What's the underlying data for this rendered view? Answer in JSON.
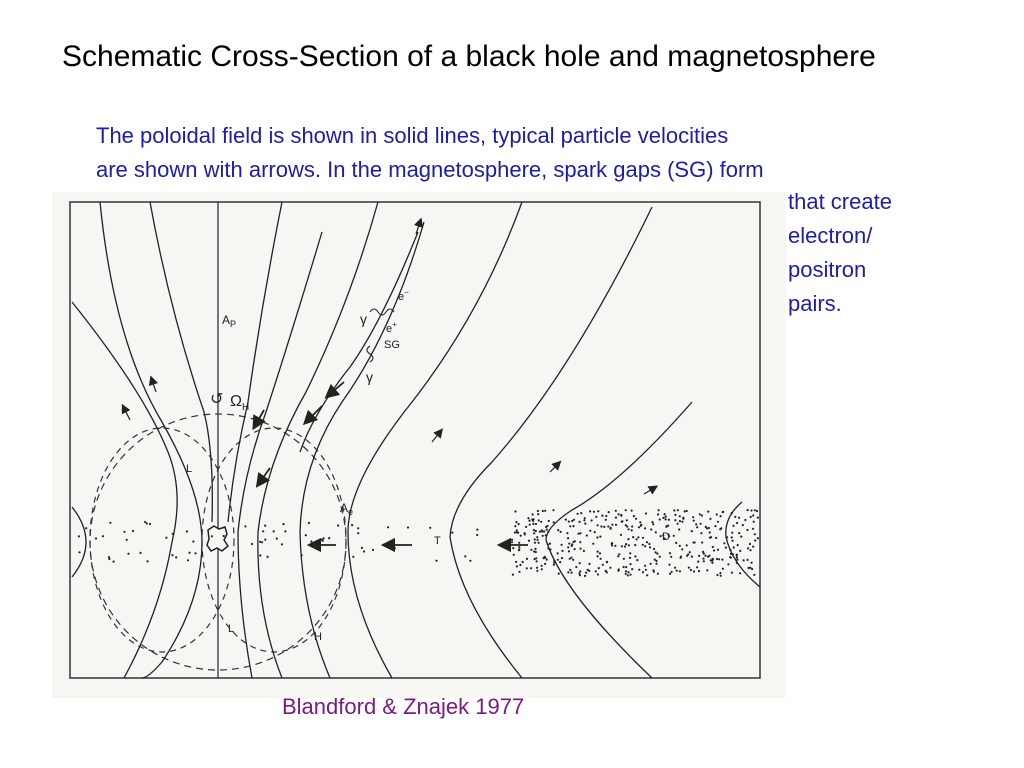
{
  "slide": {
    "title": "Schematic Cross-Section of a black hole and magnetosphere",
    "body_lines": [
      "The poloidal field is shown in solid lines, typical particle velocities",
      "are shown with arrows.  In the magnetosphere, spark gaps (SG) form"
    ],
    "side_lines": [
      "that create",
      "electron/",
      "positron",
      "pairs."
    ],
    "caption": "Blandford & Znajek 1977",
    "colors": {
      "title": "#000000",
      "body": "#1c1cae",
      "caption": "#7a1a82"
    }
  },
  "diagram": {
    "labels": {
      "ap": "A",
      "ap_sub": "P",
      "omega": "Ω",
      "omega_sub": "H",
      "ae": "A",
      "ae_sub": "e",
      "gamma_top": "γ",
      "e_minus": "e",
      "e_minus_sup": "−",
      "e_plus": "e",
      "e_plus_sup": "+",
      "sg": "SG",
      "gamma_bottom": "γ",
      "l_top": "L",
      "l_bottom": "L",
      "h": "H",
      "t": "T",
      "d": "D",
      "rotation_icon": "↺"
    }
  }
}
